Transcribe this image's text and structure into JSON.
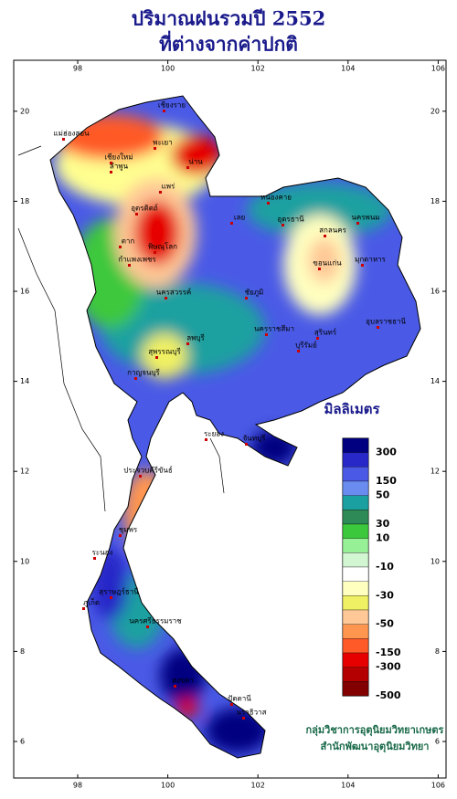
{
  "title": {
    "line1": "ปริมาณฝนรวมปี  2552",
    "line2": "ที่ต่างจากค่าปกติ"
  },
  "map": {
    "lon_ticks": [
      98,
      100,
      102,
      104,
      106
    ],
    "lat_ticks": [
      6,
      8,
      10,
      12,
      14,
      16,
      18,
      20
    ],
    "provinces": [
      "เชียงราย",
      "พะเยา",
      "น่าน",
      "เชียงใหม่",
      "ลำพูน",
      "แม่ฮ่องสอน",
      "แพร่",
      "อุตรดิตถ์",
      "พิษณุโลก",
      "ตาก",
      "กำแพงเพชร",
      "นครสวรรค์",
      "เลย",
      "หนองคาย",
      "อุดรธานี",
      "สกลนคร",
      "นครพนม",
      "มุกดาหาร",
      "ขอนแก่น",
      "ชัยภูมิ",
      "นครราชสีมา",
      "บุรีรัมย์",
      "สุรินทร์",
      "อุบลราชธานี",
      "ลพบุรี",
      "สุพรรณบุรี",
      "กาญจนบุรี",
      "ระยอง",
      "จันทบุรี",
      "ประจวบคีรีขันธ์",
      "ชุมพร",
      "ระนอง",
      "สุราษฎร์ธานี",
      "ภูเก็ต",
      "นครศรีธรรมราช",
      "สงขลา",
      "ปัตตานี",
      "นราธิวาส"
    ]
  },
  "legend": {
    "title": "มิลลิเมตร",
    "colors": [
      "#000080",
      "#2828c8",
      "#4a5ae6",
      "#6a8cf0",
      "#1aa0a0",
      "#2e8b57",
      "#3cc83c",
      "#96f096",
      "#d2f5d2",
      "#ffffff",
      "#ffffc0",
      "#f0f064",
      "#ffc896",
      "#ff9650",
      "#ff5a28",
      "#e60000",
      "#b40000",
      "#820000"
    ],
    "labels": [
      300,
      150,
      50,
      30,
      10,
      -10,
      -30,
      -50,
      -150,
      -300,
      -500
    ]
  },
  "credits": {
    "line1": "กลุ่มวิชาการอุตุนิยมวิทยาเกษตร",
    "line2": "สำนักพัฒนาอุตุนิยมวิทยา"
  }
}
